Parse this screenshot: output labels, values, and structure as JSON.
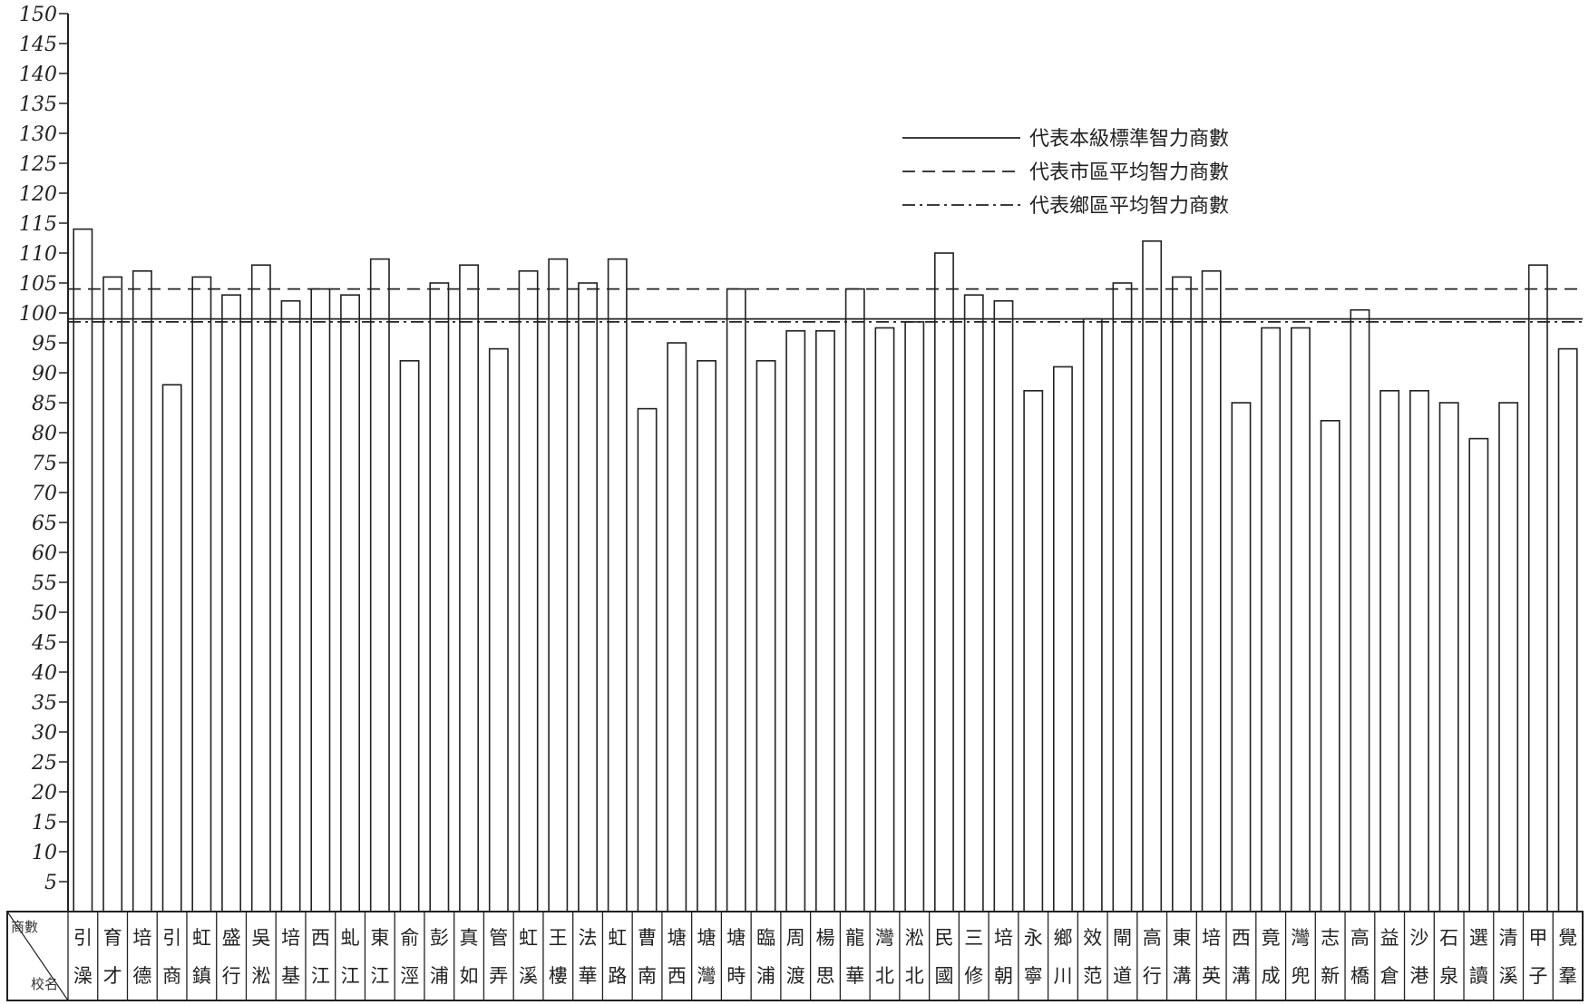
{
  "chart_data": {
    "type": "bar",
    "title": "",
    "xlabel": "",
    "ylabel": "",
    "ylim": [
      0,
      150
    ],
    "yticks": [
      5,
      10,
      15,
      20,
      25,
      30,
      35,
      40,
      45,
      50,
      55,
      60,
      65,
      70,
      75,
      80,
      85,
      90,
      95,
      100,
      105,
      110,
      115,
      120,
      125,
      130,
      135,
      140,
      145,
      150
    ],
    "grid": false,
    "legend_position": "top-right",
    "table_corner": {
      "top": "商數",
      "bottom": "校名"
    },
    "categories": [
      [
        "引",
        "澡"
      ],
      [
        "育",
        "才"
      ],
      [
        "培",
        "德"
      ],
      [
        "引",
        "商"
      ],
      [
        "虹",
        "鎮"
      ],
      [
        "盛",
        "行"
      ],
      [
        "吳",
        "淞"
      ],
      [
        "培",
        "基"
      ],
      [
        "西",
        "江"
      ],
      [
        "虬",
        "江"
      ],
      [
        "東",
        "江"
      ],
      [
        "俞",
        "涇"
      ],
      [
        "彭",
        "浦"
      ],
      [
        "真",
        "如"
      ],
      [
        "管",
        "弄"
      ],
      [
        "虹",
        "溪"
      ],
      [
        "王",
        "樓"
      ],
      [
        "法",
        "華"
      ],
      [
        "虹",
        "路"
      ],
      [
        "曹",
        "南"
      ],
      [
        "塘",
        "西"
      ],
      [
        "塘",
        "灣"
      ],
      [
        "塘",
        "時"
      ],
      [
        "臨",
        "浦"
      ],
      [
        "周",
        "渡"
      ],
      [
        "楊",
        "思"
      ],
      [
        "龍",
        "華"
      ],
      [
        "灣",
        "北"
      ],
      [
        "淞",
        "北"
      ],
      [
        "民",
        "國"
      ],
      [
        "三",
        "修"
      ],
      [
        "培",
        "朝"
      ],
      [
        "永",
        "寧"
      ],
      [
        "鄉",
        "川"
      ],
      [
        "效",
        "范"
      ],
      [
        "閘",
        "道"
      ],
      [
        "高",
        "行"
      ],
      [
        "東",
        "溝"
      ],
      [
        "培",
        "英"
      ],
      [
        "西",
        "溝"
      ],
      [
        "竟",
        "成"
      ],
      [
        "灣",
        "兜"
      ],
      [
        "志",
        "新"
      ],
      [
        "高",
        "橋"
      ],
      [
        "益",
        "倉"
      ],
      [
        "沙",
        "港"
      ],
      [
        "石",
        "泉"
      ],
      [
        "選",
        "讀"
      ],
      [
        "清",
        "溪"
      ],
      [
        "甲",
        "子"
      ],
      [
        "覺",
        "羣"
      ]
    ],
    "values": [
      114,
      106,
      107,
      88,
      106,
      103,
      108,
      102,
      104,
      103,
      109,
      92,
      105,
      108,
      94,
      107,
      109,
      105,
      109,
      84,
      95,
      92,
      104,
      92,
      97,
      97,
      104,
      97.5,
      98.5,
      110,
      103,
      102,
      87,
      91,
      99,
      105,
      112,
      106,
      107,
      85,
      97.5,
      97.5,
      82,
      100.5,
      87,
      87,
      85,
      79,
      85,
      108,
      94
    ],
    "reference_lines": [
      {
        "name": "代表本級標準智力商數",
        "style": "solid",
        "value": 99
      },
      {
        "name": "代表市區平均智力商數",
        "style": "dashed",
        "value": 104
      },
      {
        "name": "代表鄉區平均智力商數",
        "style": "dashdot",
        "value": 98.5
      }
    ]
  }
}
